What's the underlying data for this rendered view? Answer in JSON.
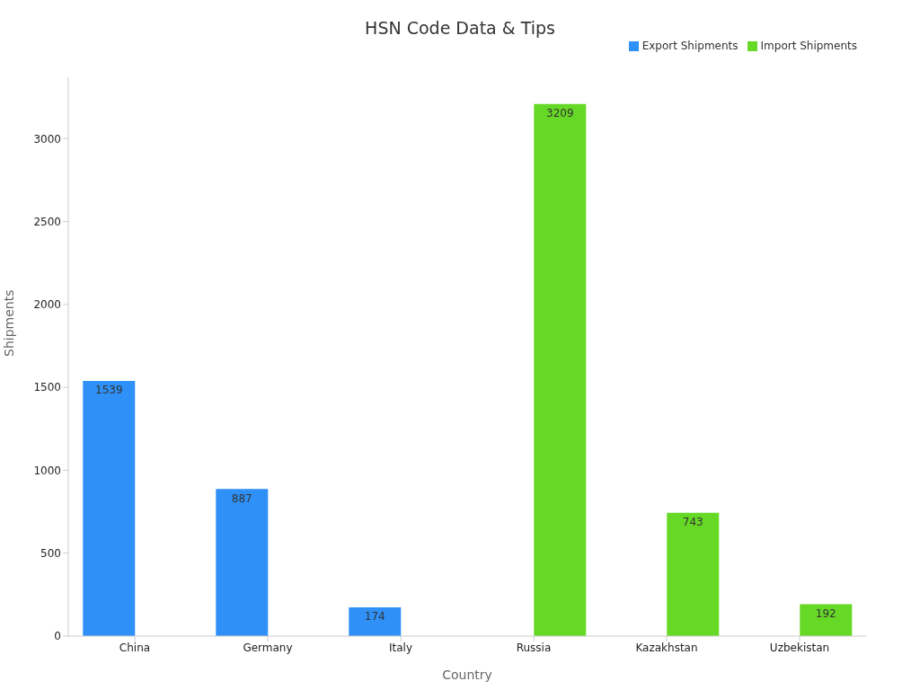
{
  "chart_data": {
    "type": "bar",
    "title": "HSN Code Data & Tips",
    "xlabel": "Country",
    "ylabel": "Shipments",
    "categories": [
      "China",
      "Germany",
      "Italy",
      "Russia",
      "Kazakhstan",
      "Uzbekistan"
    ],
    "series": [
      {
        "name": "Export Shipments",
        "color": "#2f91f7",
        "values": [
          1539,
          887,
          174,
          null,
          null,
          null
        ]
      },
      {
        "name": "Import Shipments",
        "color": "#66d926",
        "values": [
          null,
          null,
          null,
          3209,
          743,
          192
        ]
      }
    ],
    "ylim": [
      0,
      3370
    ],
    "yticks": [
      0,
      500,
      1000,
      1500,
      2000,
      2500,
      3000
    ],
    "legend": "top right",
    "data_labels": true
  }
}
